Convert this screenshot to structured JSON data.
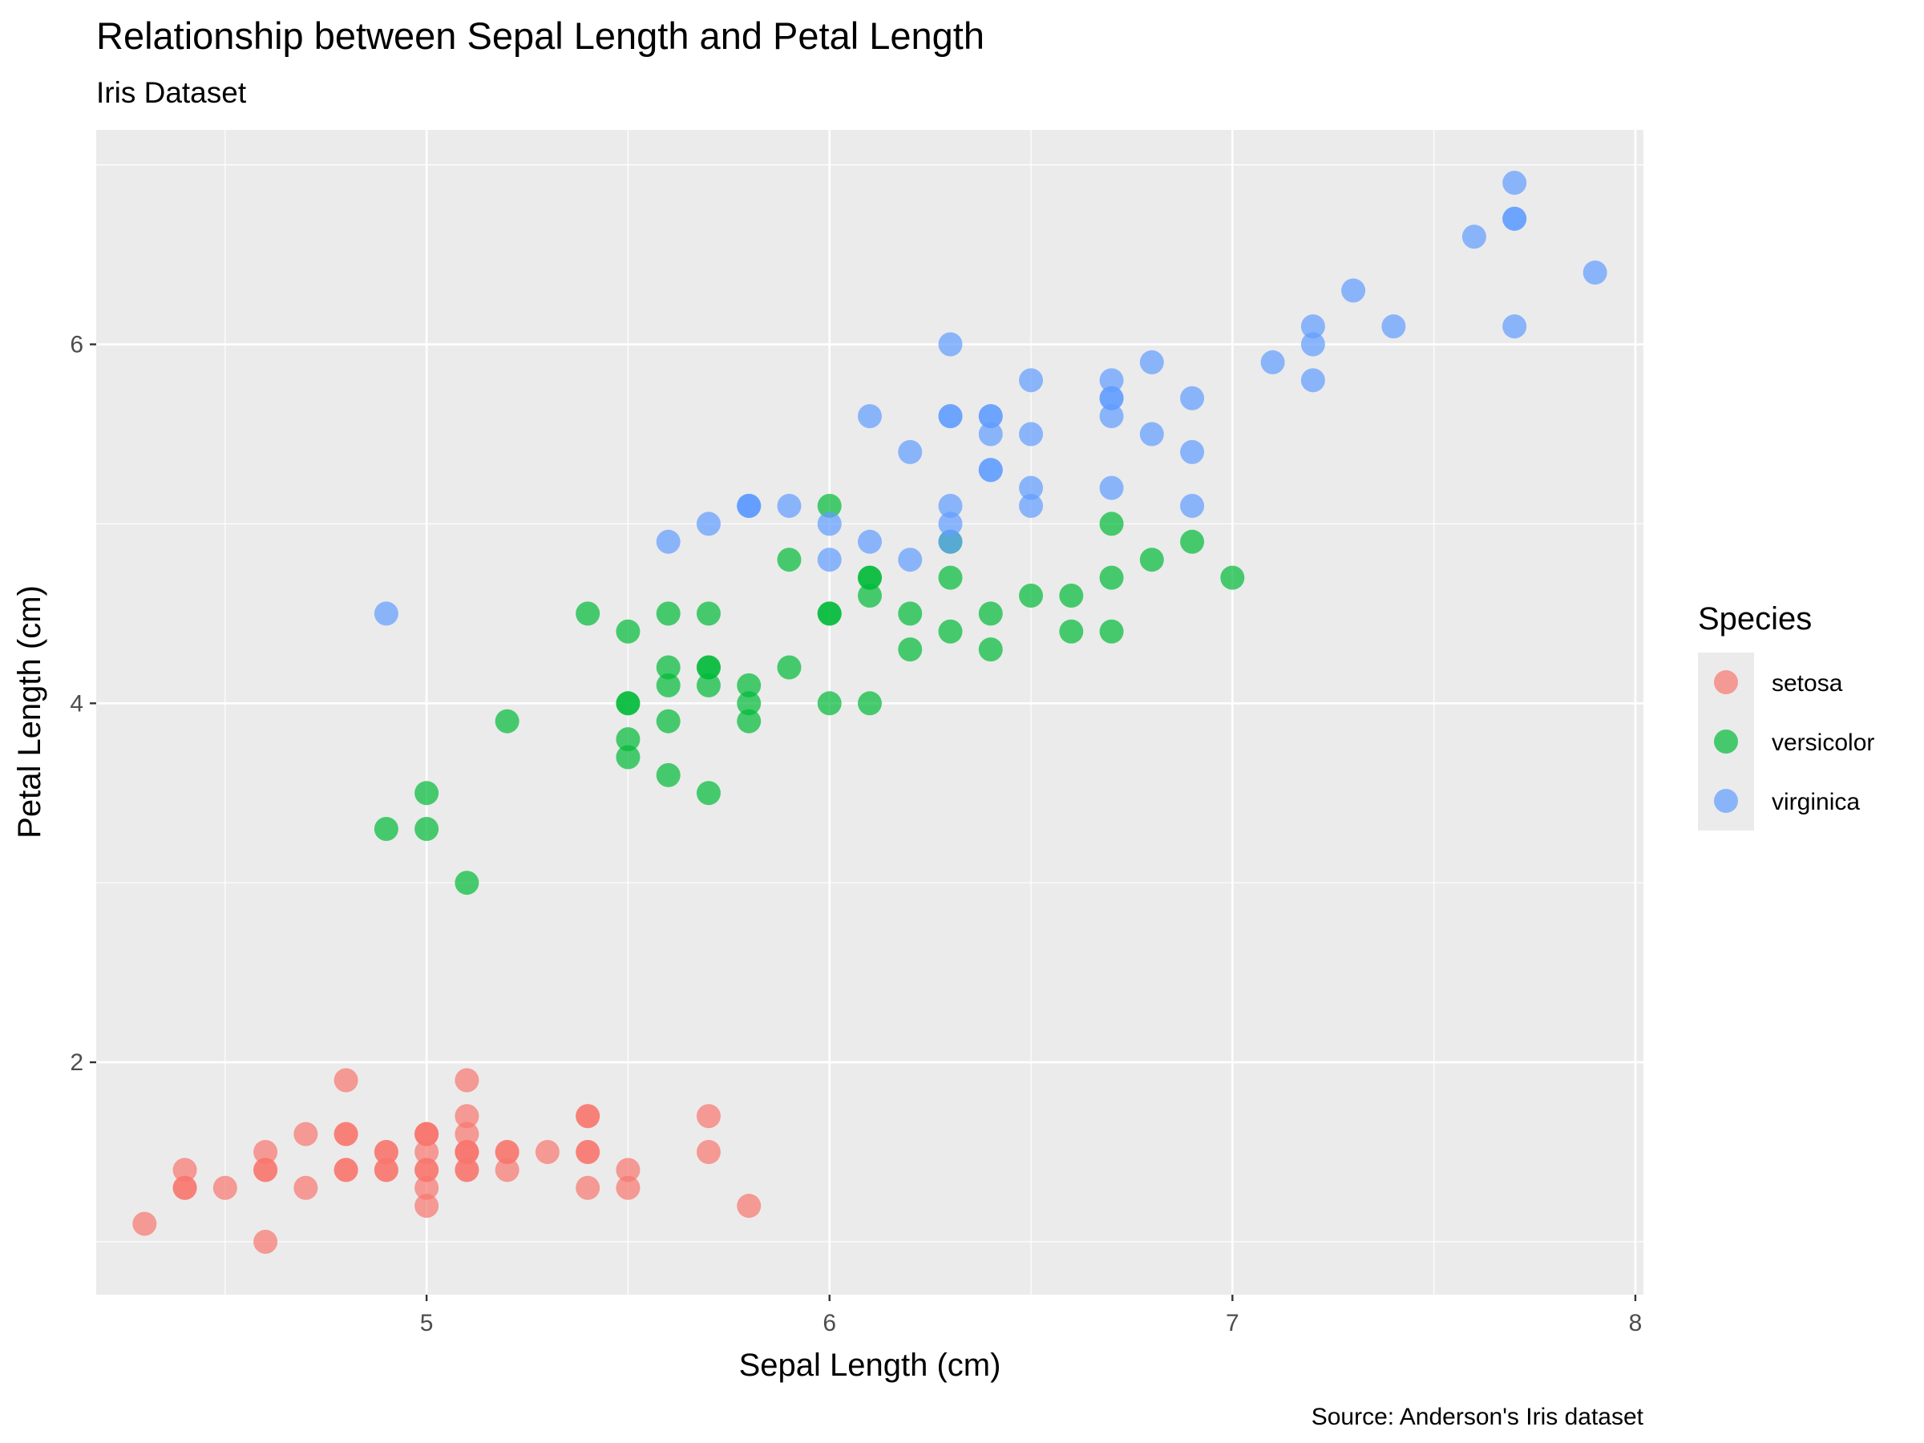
{
  "chart_data": {
    "type": "scatter",
    "title": "Relationship between Sepal Length and Petal Length",
    "subtitle": "Iris Dataset",
    "xlabel": "Sepal Length (cm)",
    "ylabel": "Petal Length (cm)",
    "caption": "Source: Anderson's Iris dataset",
    "xlim": [
      4.18,
      8.02
    ],
    "ylim": [
      0.705,
      7.195
    ],
    "x_ticks": [
      5,
      6,
      7,
      8
    ],
    "y_ticks": [
      2,
      4,
      6
    ],
    "grid": true,
    "legend": {
      "title": "Species",
      "position": "right"
    },
    "series": [
      {
        "name": "setosa",
        "color": "#F8766D",
        "points": [
          [
            5.1,
            1.4
          ],
          [
            4.9,
            1.4
          ],
          [
            4.7,
            1.3
          ],
          [
            4.6,
            1.5
          ],
          [
            5.0,
            1.4
          ],
          [
            5.4,
            1.7
          ],
          [
            4.6,
            1.4
          ],
          [
            5.0,
            1.5
          ],
          [
            4.4,
            1.4
          ],
          [
            4.9,
            1.5
          ],
          [
            5.4,
            1.5
          ],
          [
            4.8,
            1.6
          ],
          [
            4.8,
            1.4
          ],
          [
            4.3,
            1.1
          ],
          [
            5.8,
            1.2
          ],
          [
            5.7,
            1.5
          ],
          [
            5.4,
            1.3
          ],
          [
            5.1,
            1.4
          ],
          [
            5.7,
            1.7
          ],
          [
            5.1,
            1.5
          ],
          [
            5.4,
            1.7
          ],
          [
            5.1,
            1.5
          ],
          [
            4.6,
            1.0
          ],
          [
            5.1,
            1.7
          ],
          [
            4.8,
            1.9
          ],
          [
            5.0,
            1.6
          ],
          [
            5.0,
            1.6
          ],
          [
            5.2,
            1.5
          ],
          [
            5.2,
            1.4
          ],
          [
            4.7,
            1.6
          ],
          [
            4.8,
            1.6
          ],
          [
            5.4,
            1.5
          ],
          [
            5.2,
            1.5
          ],
          [
            5.5,
            1.4
          ],
          [
            4.9,
            1.5
          ],
          [
            5.0,
            1.2
          ],
          [
            5.5,
            1.3
          ],
          [
            4.9,
            1.4
          ],
          [
            4.4,
            1.3
          ],
          [
            5.1,
            1.5
          ],
          [
            5.0,
            1.3
          ],
          [
            4.5,
            1.3
          ],
          [
            4.4,
            1.3
          ],
          [
            5.0,
            1.6
          ],
          [
            5.1,
            1.9
          ],
          [
            4.8,
            1.4
          ],
          [
            5.1,
            1.6
          ],
          [
            4.6,
            1.4
          ],
          [
            5.3,
            1.5
          ],
          [
            5.0,
            1.4
          ]
        ]
      },
      {
        "name": "versicolor",
        "color": "#00BA38",
        "points": [
          [
            7.0,
            4.7
          ],
          [
            6.4,
            4.5
          ],
          [
            6.9,
            4.9
          ],
          [
            5.5,
            4.0
          ],
          [
            6.5,
            4.6
          ],
          [
            5.7,
            4.5
          ],
          [
            6.3,
            4.7
          ],
          [
            4.9,
            3.3
          ],
          [
            6.6,
            4.6
          ],
          [
            5.2,
            3.9
          ],
          [
            5.0,
            3.5
          ],
          [
            5.9,
            4.2
          ],
          [
            6.0,
            4.0
          ],
          [
            6.1,
            4.7
          ],
          [
            5.6,
            3.6
          ],
          [
            6.7,
            4.4
          ],
          [
            5.6,
            4.5
          ],
          [
            5.8,
            4.1
          ],
          [
            6.2,
            4.5
          ],
          [
            5.6,
            3.9
          ],
          [
            5.9,
            4.8
          ],
          [
            6.1,
            4.0
          ],
          [
            6.3,
            4.9
          ],
          [
            6.1,
            4.7
          ],
          [
            6.4,
            4.3
          ],
          [
            6.6,
            4.4
          ],
          [
            6.8,
            4.8
          ],
          [
            6.7,
            5.0
          ],
          [
            6.0,
            4.5
          ],
          [
            5.7,
            3.5
          ],
          [
            5.5,
            3.8
          ],
          [
            5.5,
            3.7
          ],
          [
            5.8,
            3.9
          ],
          [
            6.0,
            5.1
          ],
          [
            5.4,
            4.5
          ],
          [
            6.0,
            4.5
          ],
          [
            6.7,
            4.7
          ],
          [
            6.3,
            4.4
          ],
          [
            5.6,
            4.1
          ],
          [
            5.5,
            4.0
          ],
          [
            5.5,
            4.4
          ],
          [
            6.1,
            4.6
          ],
          [
            5.8,
            4.0
          ],
          [
            5.0,
            3.3
          ],
          [
            5.6,
            4.2
          ],
          [
            5.7,
            4.2
          ],
          [
            5.7,
            4.2
          ],
          [
            6.2,
            4.3
          ],
          [
            5.1,
            3.0
          ],
          [
            5.7,
            4.1
          ]
        ]
      },
      {
        "name": "virginica",
        "color": "#619CFF",
        "points": [
          [
            6.3,
            6.0
          ],
          [
            5.8,
            5.1
          ],
          [
            7.1,
            5.9
          ],
          [
            6.3,
            5.6
          ],
          [
            6.5,
            5.8
          ],
          [
            7.6,
            6.6
          ],
          [
            4.9,
            4.5
          ],
          [
            7.3,
            6.3
          ],
          [
            6.7,
            5.8
          ],
          [
            7.2,
            6.1
          ],
          [
            6.5,
            5.1
          ],
          [
            6.4,
            5.3
          ],
          [
            6.8,
            5.5
          ],
          [
            5.7,
            5.0
          ],
          [
            5.8,
            5.1
          ],
          [
            6.4,
            5.3
          ],
          [
            6.5,
            5.5
          ],
          [
            7.7,
            6.7
          ],
          [
            7.7,
            6.9
          ],
          [
            6.0,
            5.0
          ],
          [
            6.9,
            5.7
          ],
          [
            5.6,
            4.9
          ],
          [
            7.7,
            6.7
          ],
          [
            6.3,
            4.9
          ],
          [
            6.7,
            5.7
          ],
          [
            7.2,
            6.0
          ],
          [
            6.2,
            4.8
          ],
          [
            6.1,
            4.9
          ],
          [
            6.4,
            5.6
          ],
          [
            7.2,
            5.8
          ],
          [
            7.4,
            6.1
          ],
          [
            7.9,
            6.4
          ],
          [
            6.4,
            5.6
          ],
          [
            6.3,
            5.1
          ],
          [
            6.1,
            5.6
          ],
          [
            7.7,
            6.1
          ],
          [
            6.3,
            5.6
          ],
          [
            6.4,
            5.5
          ],
          [
            6.0,
            4.8
          ],
          [
            6.9,
            5.4
          ],
          [
            6.7,
            5.6
          ],
          [
            6.9,
            5.1
          ],
          [
            5.8,
            5.1
          ],
          [
            6.8,
            5.9
          ],
          [
            6.7,
            5.7
          ],
          [
            6.7,
            5.2
          ],
          [
            6.3,
            5.0
          ],
          [
            6.5,
            5.2
          ],
          [
            6.2,
            5.4
          ],
          [
            5.9,
            5.1
          ]
        ]
      }
    ]
  }
}
